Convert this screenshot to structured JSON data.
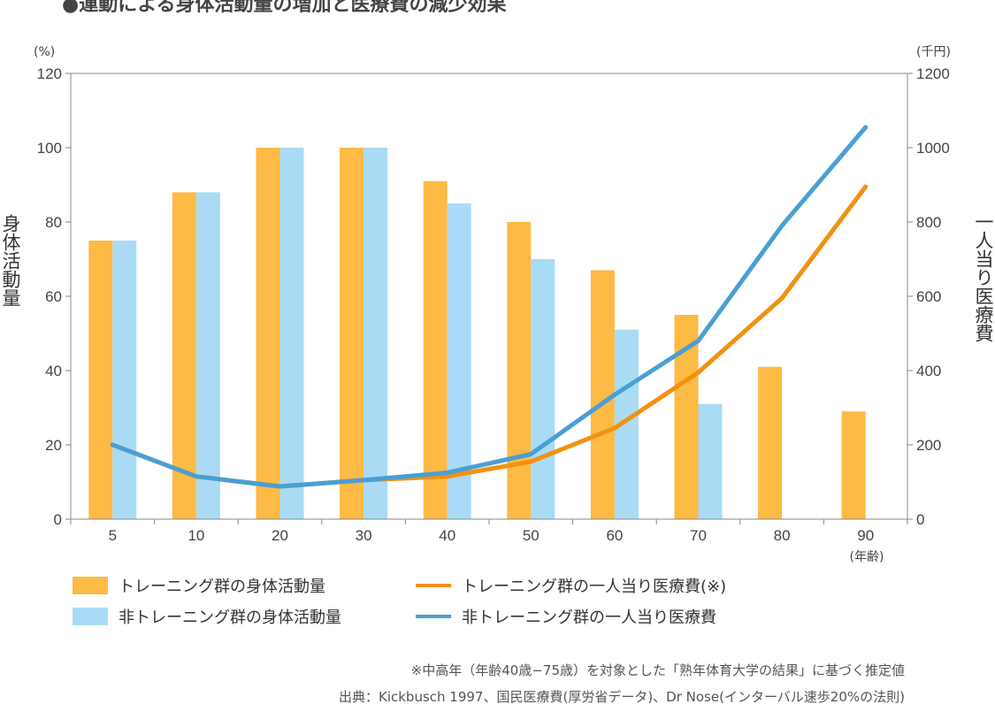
{
  "colors": {
    "training_bar": "#FDBA44",
    "non_training_bar": "#A9DBF5",
    "training_line": "#F29111",
    "non_training_line": "#4A9FD4",
    "axis": "#888888"
  },
  "chart_data": {
    "type": "bar",
    "title": "●運動による身体活動量の増加と医療費の減少効果",
    "categories": [
      "5",
      "10",
      "20",
      "30",
      "40",
      "50",
      "60",
      "70",
      "80",
      "90"
    ],
    "x_unit": "(年齢)",
    "y_left": {
      "label": "身体活動量",
      "unit": "(%)",
      "ticks": [
        "0",
        "20",
        "40",
        "60",
        "80",
        "100",
        "120"
      ],
      "ylim": [
        0,
        120
      ]
    },
    "y_right": {
      "label": "一人当り医療費",
      "unit": "(千円)",
      "ticks": [
        "0",
        "200",
        "400",
        "600",
        "800",
        "1000",
        "1200"
      ],
      "ylim": [
        0,
        1200
      ]
    },
    "bar_series": [
      {
        "name": "トレーニング群の身体活動量",
        "color": "#FDBA44",
        "values": [
          75,
          88,
          100,
          100,
          91,
          80,
          67,
          55,
          41,
          29
        ]
      },
      {
        "name": "非トレーニング群の身体活動量",
        "color": "#A9DBF5",
        "values": [
          75,
          88,
          100,
          100,
          85,
          70,
          51,
          31,
          null,
          null
        ]
      }
    ],
    "line_series": [
      {
        "name": "トレーニング群の一人当り医療費(※)",
        "color": "#F29111",
        "axis": "right",
        "values": [
          200,
          115,
          88,
          105,
          115,
          155,
          245,
          395,
          595,
          895
        ]
      },
      {
        "name": "非トレーニング群の一人当り医療費",
        "color": "#4A9FD4",
        "axis": "right",
        "values": [
          200,
          115,
          88,
          105,
          125,
          175,
          335,
          480,
          790,
          1055
        ]
      }
    ],
    "grid": false,
    "legend_position": "bottom",
    "notes": [
      "※中高年（年齢40歳−75歳）を対象とした「熟年体育大学の結果」に基づく推定値",
      "出典：Kickbusch 1997、国民医療費(厚労省データ)、Dr Nose(インターバル速歩20%の法則)"
    ]
  }
}
